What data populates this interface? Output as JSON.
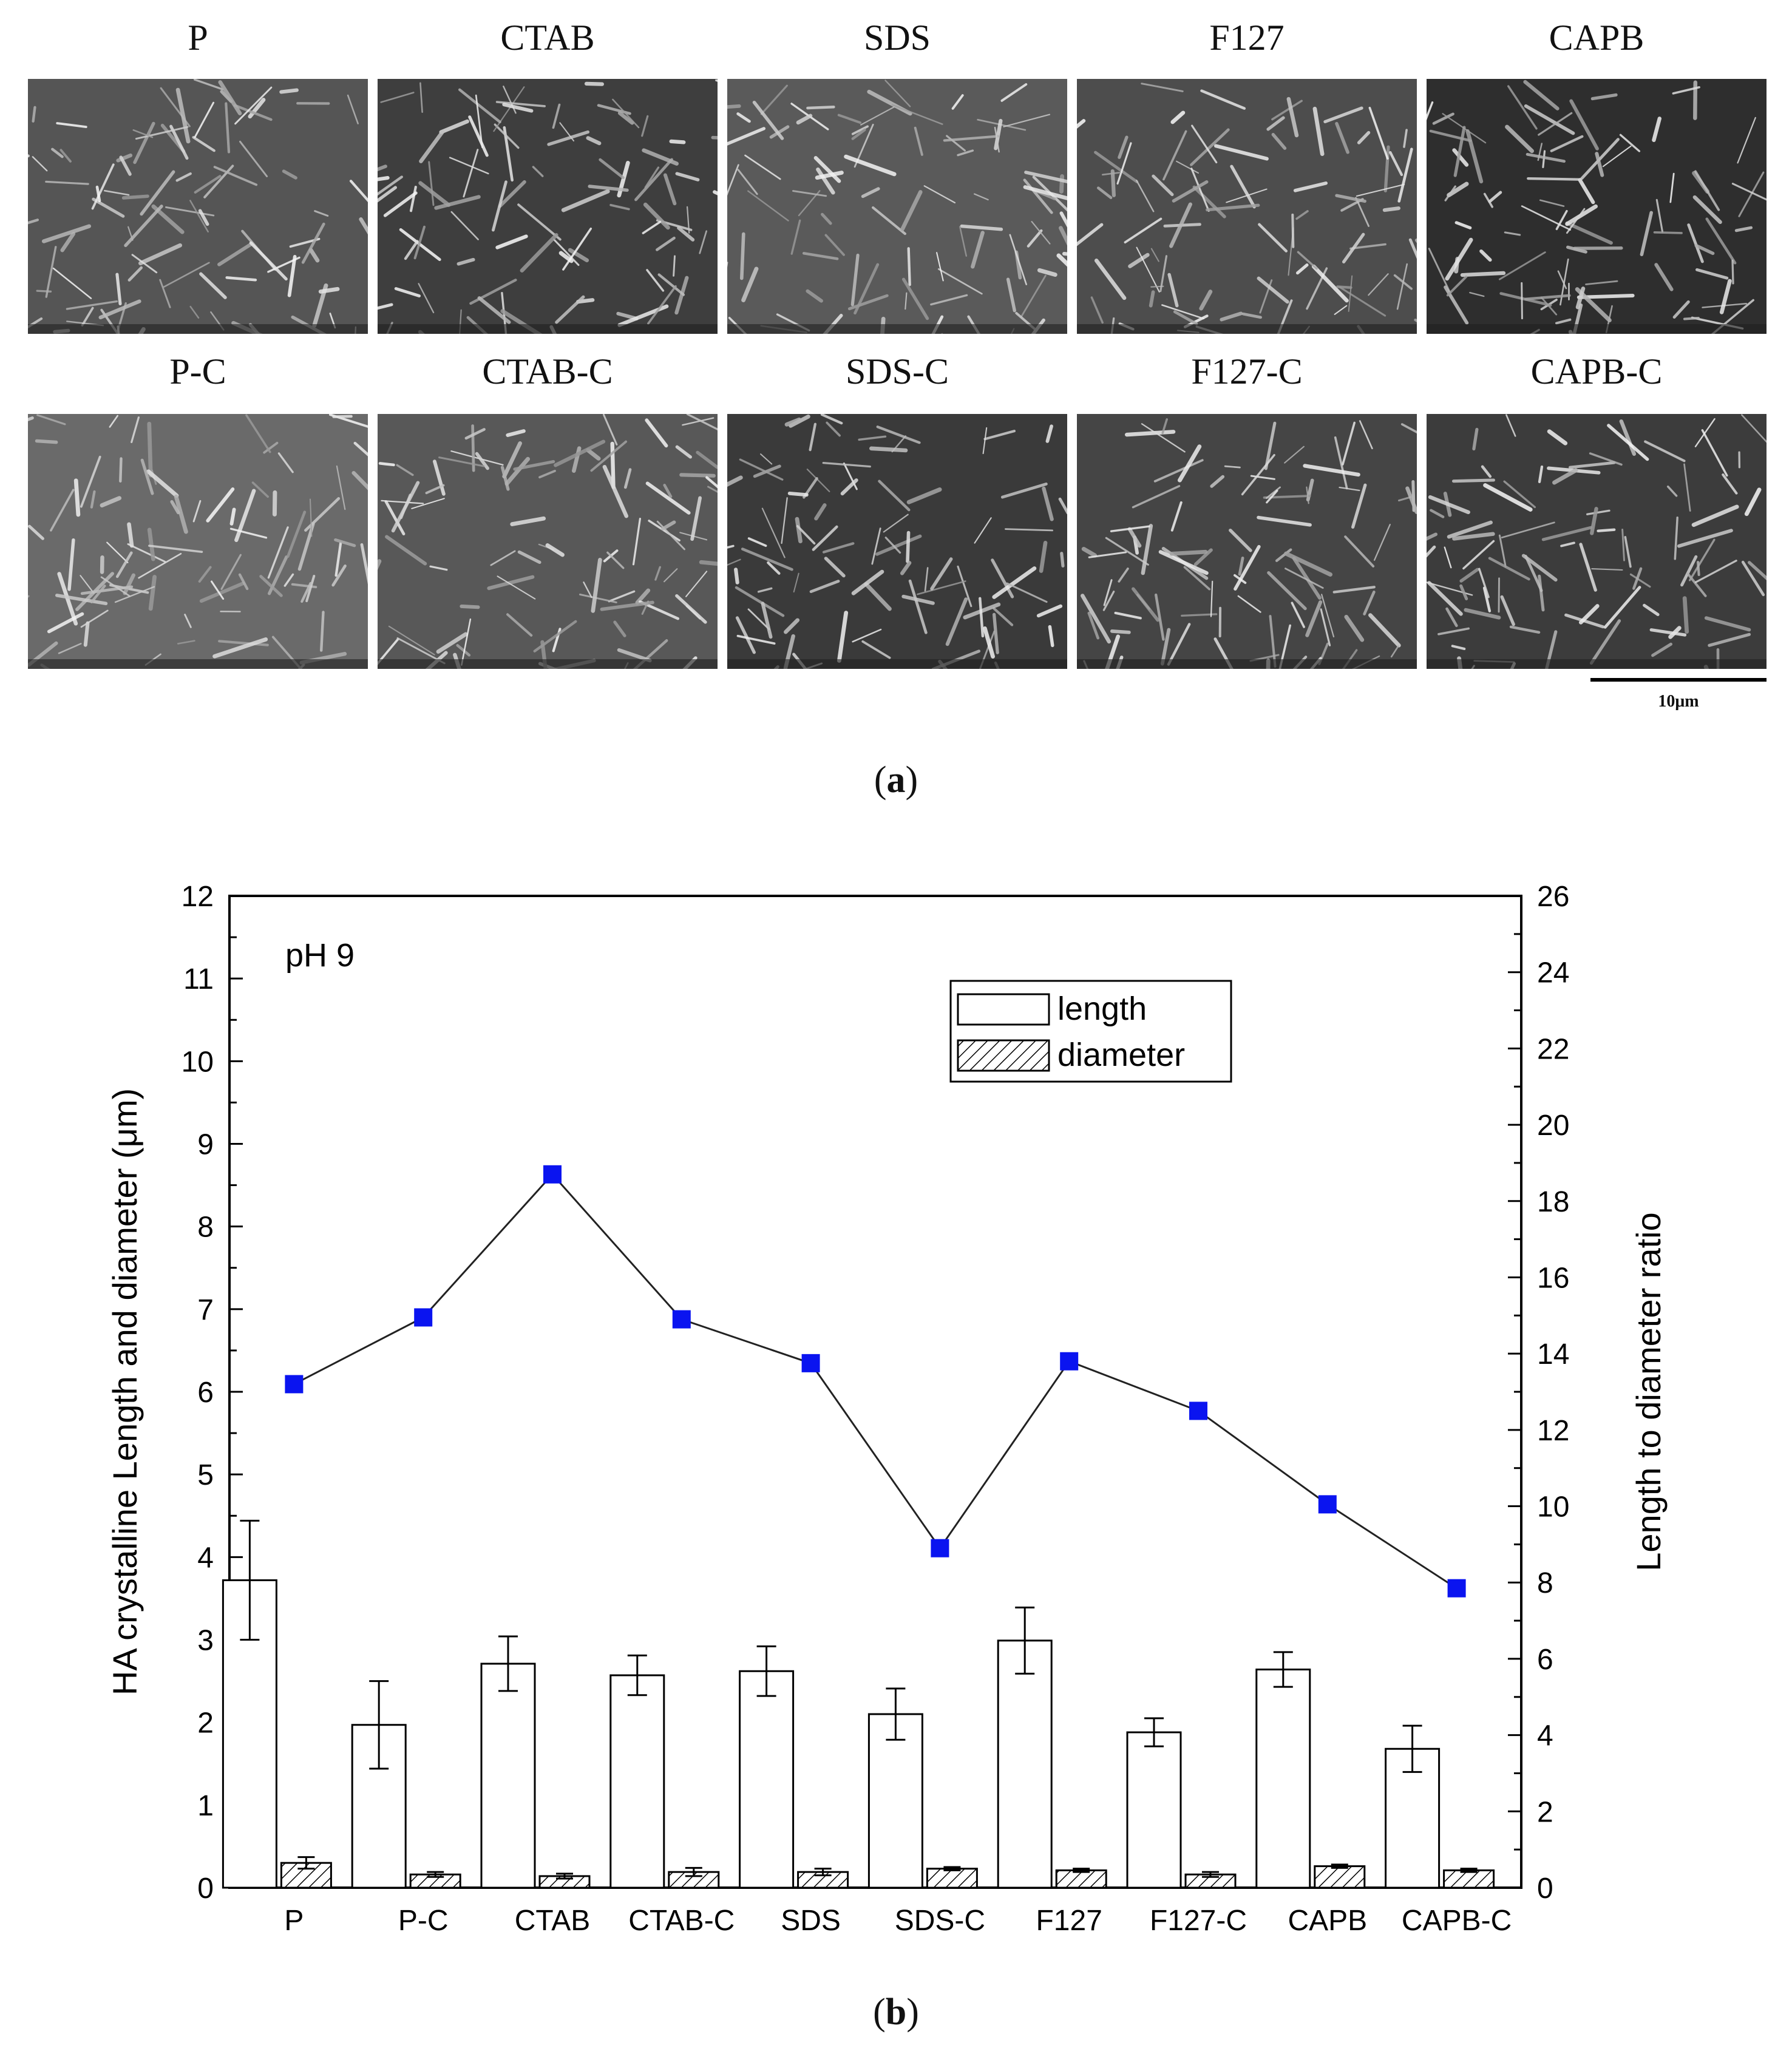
{
  "panel_a": {
    "caption_open": "(",
    "caption_letter": "a",
    "caption_close": ")",
    "images": [
      {
        "label": "P",
        "tone": "#555555"
      },
      {
        "label": "CTAB",
        "tone": "#3e3e3e"
      },
      {
        "label": "SDS",
        "tone": "#5a5a5a"
      },
      {
        "label": "F127",
        "tone": "#4d4d4d"
      },
      {
        "label": "CAPB",
        "tone": "#2e2e2e"
      },
      {
        "label": "P-C",
        "tone": "#6a6a6a"
      },
      {
        "label": "CTAB-C",
        "tone": "#585858"
      },
      {
        "label": "SDS-C",
        "tone": "#3a3a3a"
      },
      {
        "label": "F127-C",
        "tone": "#454545"
      },
      {
        "label": "CAPB-C",
        "tone": "#3c3c3c"
      }
    ],
    "scale_bar_label": "10μm"
  },
  "panel_b": {
    "caption_open": "(",
    "caption_letter": "b",
    "caption_close": ")"
  },
  "chart_data": {
    "type": "bar",
    "annotation": "pH 9",
    "categories": [
      "P",
      "P-C",
      "CTAB",
      "CTAB-C",
      "SDS",
      "SDS-C",
      "F127",
      "F127-C",
      "CAPB",
      "CAPB-C"
    ],
    "series": [
      {
        "name": "length",
        "axis": "left",
        "kind": "bar",
        "fill": "open",
        "values": [
          3.72,
          1.97,
          2.71,
          2.57,
          2.62,
          2.1,
          2.99,
          1.88,
          2.64,
          1.68
        ],
        "errors": [
          0.72,
          0.53,
          0.33,
          0.24,
          0.3,
          0.31,
          0.4,
          0.17,
          0.21,
          0.28
        ]
      },
      {
        "name": "diameter",
        "axis": "left",
        "kind": "bar",
        "fill": "hatched",
        "values": [
          0.3,
          0.16,
          0.14,
          0.19,
          0.19,
          0.23,
          0.21,
          0.16,
          0.26,
          0.21
        ],
        "errors": [
          0.07,
          0.03,
          0.03,
          0.05,
          0.04,
          0.02,
          0.02,
          0.03,
          0.02,
          0.02
        ]
      },
      {
        "name": "length to diameter ratio",
        "axis": "right",
        "kind": "line-marker",
        "color": "#0a14f0",
        "values": [
          13.2,
          14.95,
          18.7,
          14.9,
          13.75,
          8.9,
          13.8,
          12.5,
          10.05,
          7.85
        ]
      }
    ],
    "ylabel": "HA crystalline Length and diameter (μm)",
    "ylim": [
      0,
      12
    ],
    "yticks": [
      "0",
      "1",
      "2",
      "3",
      "4",
      "5",
      "6",
      "7",
      "8",
      "9",
      "10",
      "11",
      "12"
    ],
    "y2label": "Length to diameter ratio",
    "y2lim": [
      0,
      26
    ],
    "y2ticks": [
      "0",
      "2",
      "4",
      "6",
      "8",
      "10",
      "12",
      "14",
      "16",
      "18",
      "20",
      "22",
      "24",
      "26"
    ],
    "legend": {
      "position": "top-right",
      "entries": [
        "length",
        "diameter"
      ]
    }
  }
}
